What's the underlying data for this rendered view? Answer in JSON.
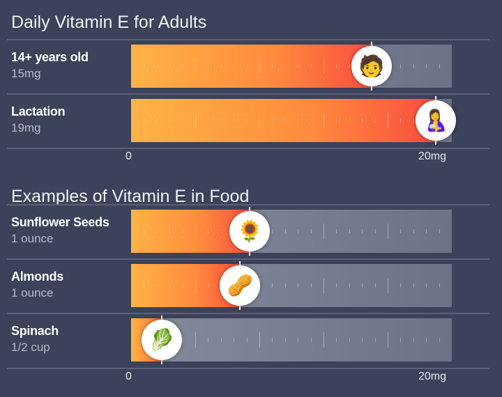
{
  "chart_data": [
    {
      "type": "bar",
      "title": "Daily Vitamin E for Adults",
      "xlim": [
        0,
        20
      ],
      "tick_labels": [
        "0",
        "20mg"
      ],
      "rows": [
        {
          "label": "14+ years old",
          "value_text": "15mg",
          "value": 15,
          "icon": "teen-boy-icon"
        },
        {
          "label": "Lactation",
          "value_text": "19mg",
          "value": 19,
          "icon": "nursing-mother-icon"
        }
      ]
    },
    {
      "type": "bar",
      "title": "Examples of Vitamin E in Food",
      "xlim": [
        0,
        20
      ],
      "tick_labels": [
        "0",
        "20mg"
      ],
      "rows": [
        {
          "label": "Sunflower Seeds",
          "value_text": "1 ounce",
          "value": 7.4,
          "icon": "sunflower-seeds-icon"
        },
        {
          "label": "Almonds",
          "value_text": "1 ounce",
          "value": 6.8,
          "icon": "almonds-icon"
        },
        {
          "label": "Spinach",
          "value_text": "1/2 cup",
          "value": 1.9,
          "icon": "spinach-icon"
        }
      ]
    }
  ],
  "colors": {
    "background": "#3b4259",
    "fill_start": "#ffb347",
    "fill_end": "#f94d3e",
    "track": "#7a8093"
  }
}
